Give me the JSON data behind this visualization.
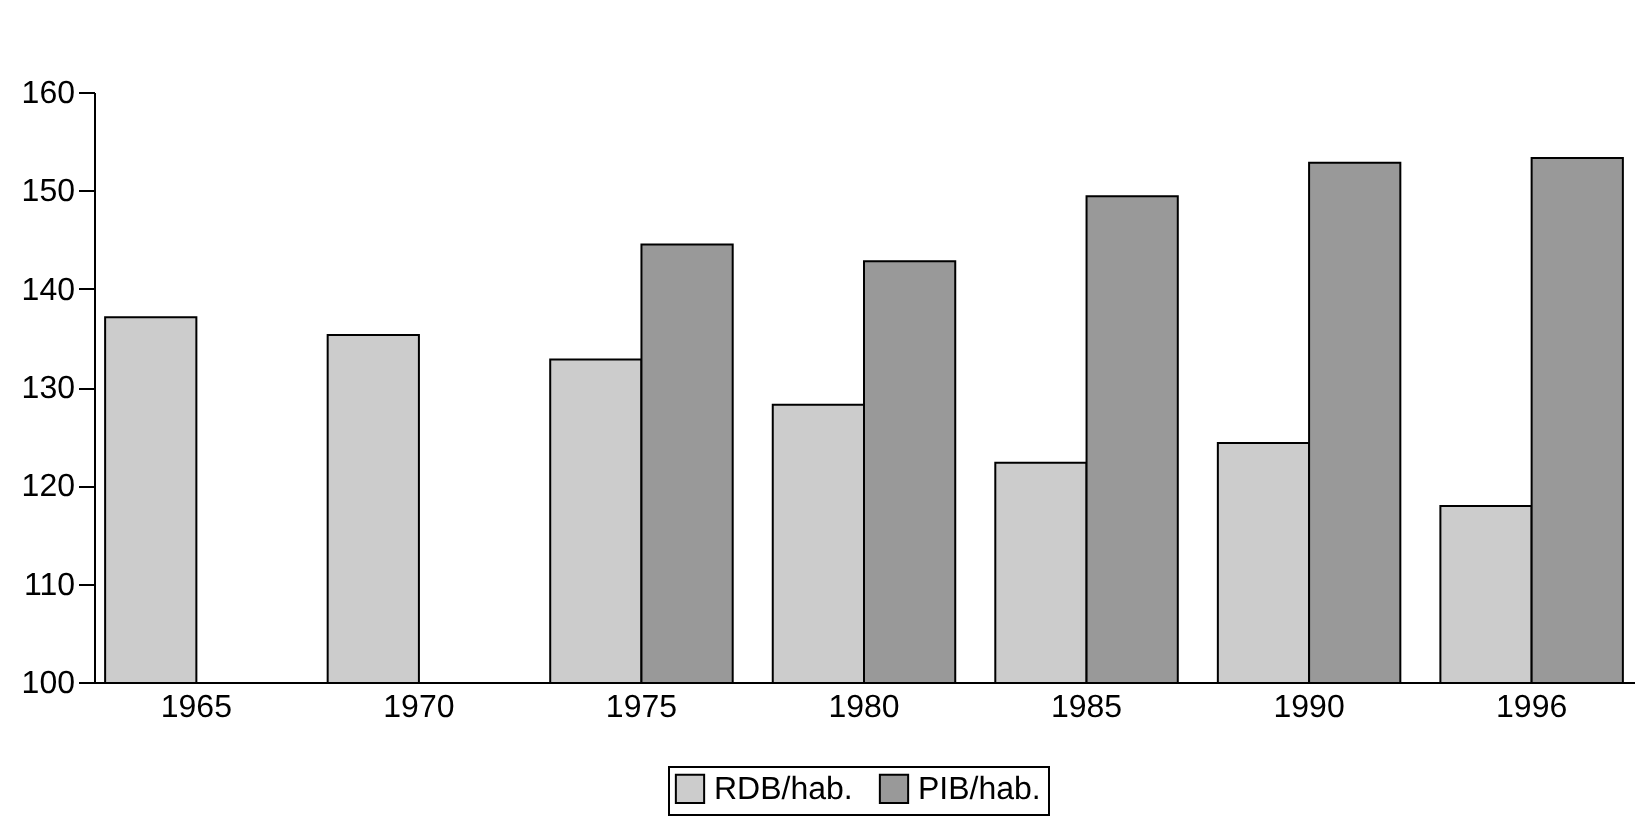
{
  "chart_data": {
    "type": "bar",
    "categories": [
      "1965",
      "1970",
      "1975",
      "1980",
      "1985",
      "1990",
      "1996"
    ],
    "series": [
      {
        "name": "RDB/hab.",
        "color": "#cccccc",
        "values": [
          137.1,
          135.3,
          132.8,
          128.2,
          122.3,
          124.3,
          117.9
        ]
      },
      {
        "name": "PIB/hab.",
        "color": "#999999",
        "values": [
          null,
          null,
          144.5,
          142.8,
          149.4,
          152.8,
          153.3
        ]
      }
    ],
    "ylim": [
      100,
      160
    ],
    "yticks": [
      100,
      110,
      120,
      130,
      140,
      150,
      160
    ],
    "grid": false,
    "legend": "bottom"
  }
}
